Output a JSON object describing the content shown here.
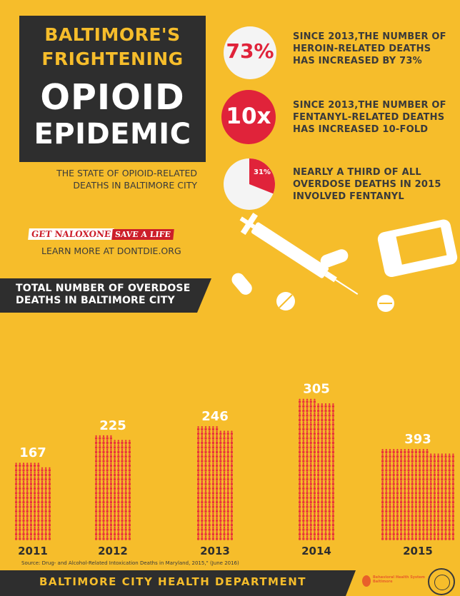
{
  "header": {
    "title_line1": "BALTIMORE'S",
    "title_line2": "FRIGHTENING",
    "title_line3": "OPIOID",
    "title_line4": "EPIDEMIC",
    "subtitle_line1": "THE STATE OF OPIOID-RELATED",
    "subtitle_line2": "DEATHS IN BALTIMORE CITY"
  },
  "campaign": {
    "naloxone": "GET NALOXONE",
    "save_life": "SAVE A LIFE",
    "learn_more": "LEARN MORE AT DONTDIE.ORG"
  },
  "stats": [
    {
      "value": "73%",
      "line1": "SINCE 2013,THE NUMBER OF",
      "line2": "HEROIN-RELATED DEATHS",
      "line3": "HAS INCREASED BY 73%"
    },
    {
      "value": "10x",
      "line1": "SINCE 2013,THE NUMBER OF",
      "line2": "FENTANYL-RELATED DEATHS",
      "line3": "HAS INCREASED 10-FOLD"
    },
    {
      "value": "31%",
      "fraction": 0.31,
      "line1": "NEARLY A THIRD OF ALL",
      "line2": "OVERDOSE DEATHS IN 2015",
      "line3": "INVOLVED FENTANYL"
    }
  ],
  "chart_banner": {
    "line1": "TOTAL NUMBER OF OVERDOSE",
    "line2": "DEATHS IN BALTIMORE CITY"
  },
  "chart_data": {
    "type": "bar",
    "categories": [
      "2011",
      "2012",
      "2013",
      "2014",
      "2015"
    ],
    "values": [
      167,
      225,
      246,
      305,
      393
    ],
    "ylim": [
      0,
      393
    ]
  },
  "source": "Source:  Drug- and Alcohol-Related Intoxication Deaths in Maryland, 2015,\" (June 2016)",
  "footer": {
    "text": "BALTIMORE CITY HEALTH DEPARTMENT",
    "partner_logo_text1": "Behavioral Health System",
    "partner_logo_text2": "Baltimore"
  },
  "colors": {
    "background": "#f6bd2b",
    "dark": "#2e2e2e",
    "red": "#e0233a",
    "figure_red": "#e8343a",
    "white": "#ffffff"
  }
}
